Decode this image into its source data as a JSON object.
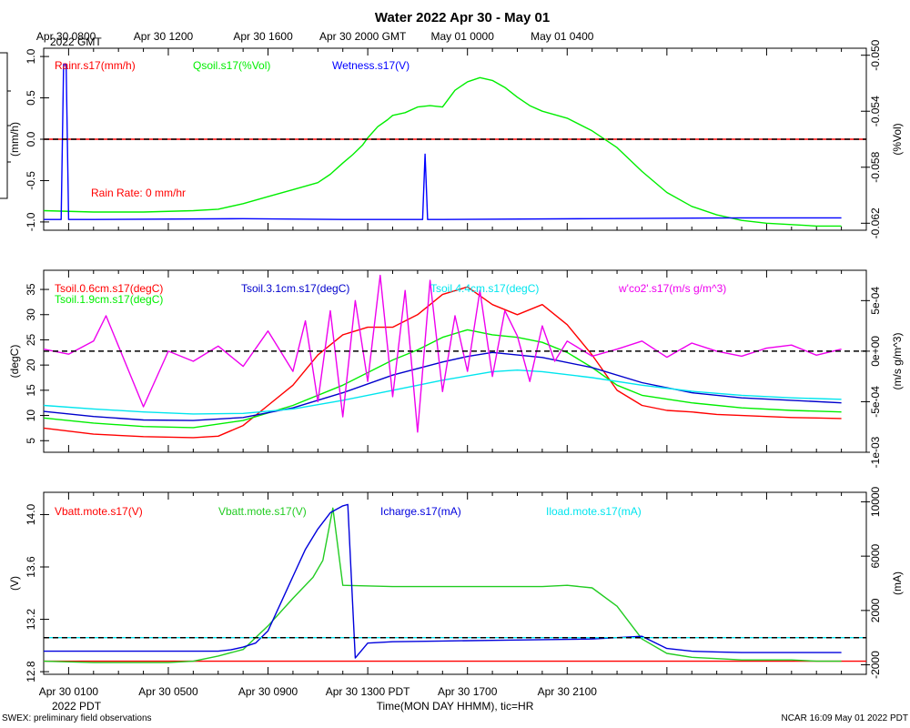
{
  "page": {
    "title": "Water 2022 Apr 30 - May 01",
    "footer_left": "SWEX: preliminary field observations",
    "footer_right": "NCAR 16:09 May 01 2022 PDT",
    "x_title": "Time(MON DAY HHMM), tic=HR",
    "top_year_label": "2022 GMT",
    "bottom_year_label": "2022 PDT",
    "side_box_ticks": [
      "1",
      "0",
      "-1"
    ]
  },
  "chart_data": [
    {
      "id": "top-axis",
      "type": "line",
      "axis": "time",
      "xlim_hours": [
        0,
        33
      ],
      "top_ticks": [
        {
          "h": 0.8,
          "label": "Apr 30 0800"
        },
        {
          "h": 4.8,
          "label": "Apr 30 1200"
        },
        {
          "h": 8.8,
          "label": "Apr 30 1600"
        },
        {
          "h": 12.8,
          "label": "Apr 30 2000 GMT"
        },
        {
          "h": 16.8,
          "label": "May 01 0000"
        },
        {
          "h": 20.8,
          "label": "May 01 0400"
        }
      ],
      "bottom_ticks": [
        {
          "h": 1,
          "label": "Apr 30 0100"
        },
        {
          "h": 5,
          "label": "Apr 30 0500"
        },
        {
          "h": 9,
          "label": "Apr 30 0900"
        },
        {
          "h": 13,
          "label": "Apr 30 1300 PDT"
        },
        {
          "h": 17,
          "label": "Apr 30 1700"
        },
        {
          "h": 21,
          "label": "Apr 30 2100"
        }
      ]
    },
    {
      "id": "panel-water",
      "type": "line",
      "ylabel": "(mm/h)",
      "ylabel2": "(%Vol)",
      "ylim": [
        -1.1,
        1.1
      ],
      "yticks": [
        1.0,
        0.5,
        0.0,
        -0.5,
        -1.0
      ],
      "ytick_labels": [
        "1.0",
        "0.5",
        "0.0",
        "-0.5",
        "-1.0"
      ],
      "y2lim": [
        -0.0625,
        -0.0495
      ],
      "y2ticks": [
        -0.05,
        -0.054,
        -0.058,
        -0.062
      ],
      "y2tick_labels": [
        "-0.050",
        "-0.054",
        "-0.058",
        "-0.062"
      ],
      "annotation": "Rain Rate: 0 mm/hr",
      "series": [
        {
          "name": "Rainr.s17(mm/h)",
          "color": "#ff0000",
          "axis": "left",
          "x": [
            0,
            33
          ],
          "y": [
            0,
            0
          ]
        },
        {
          "name": "Qsoil.s17(%Vol)",
          "color": "#00ee00",
          "axis": "right",
          "x": [
            0,
            2,
            4,
            6,
            7,
            8,
            9,
            10,
            11,
            11.5,
            12,
            12.4,
            12.8,
            13,
            13.4,
            13.8,
            14,
            14.5,
            15,
            15.5,
            16,
            16.5,
            17,
            17.5,
            18,
            18.5,
            19,
            19.5,
            20,
            21,
            22,
            23,
            24,
            25,
            26,
            27,
            28,
            29,
            30,
            31,
            32
          ],
          "y": [
            -0.0611,
            -0.0612,
            -0.0612,
            -0.0611,
            -0.061,
            -0.0606,
            -0.0601,
            -0.0596,
            -0.0591,
            -0.0585,
            -0.0577,
            -0.0571,
            -0.0564,
            -0.0559,
            -0.0551,
            -0.0546,
            -0.0543,
            -0.0541,
            -0.0537,
            -0.0536,
            -0.0537,
            -0.0525,
            -0.0519,
            -0.0516,
            -0.0518,
            -0.0523,
            -0.053,
            -0.0536,
            -0.054,
            -0.0545,
            -0.0554,
            -0.0566,
            -0.0583,
            -0.0598,
            -0.0608,
            -0.0614,
            -0.0618,
            -0.062,
            -0.0621,
            -0.0622,
            -0.0622
          ]
        },
        {
          "name": "Wetness.s17(V)",
          "color": "#0000ff",
          "axis": "left",
          "x": [
            0,
            0.7,
            0.8,
            0.9,
            1.0,
            2,
            8,
            12,
            15,
            15.2,
            15.3,
            15.4,
            15.5,
            16,
            22,
            28,
            32
          ],
          "y": [
            -0.97,
            -0.97,
            0.91,
            0.9,
            -0.97,
            -0.97,
            -0.96,
            -0.97,
            -0.97,
            -0.97,
            -0.18,
            -0.97,
            -0.97,
            -0.97,
            -0.96,
            -0.95,
            -0.95
          ]
        }
      ]
    },
    {
      "id": "panel-temperature",
      "type": "line",
      "ylabel": "(degC)",
      "ylabel2": "(m/s g/m^3)",
      "ylim": [
        2.7,
        38.8
      ],
      "yticks": [
        5,
        10,
        15,
        20,
        25,
        30,
        35
      ],
      "ytick_labels": [
        "5",
        "10",
        "15",
        "20",
        "25",
        "30",
        "35"
      ],
      "y2lim": [
        -0.001,
        0.0008
      ],
      "y2ticks": [
        0.0005,
        0,
        -0.0005,
        -0.001
      ],
      "y2tick_labels": [
        "5e-04",
        "0e+00",
        "-5e-04",
        "-1e-03"
      ],
      "series": [
        {
          "name": "Tsoil.0.6cm.s17(degC)",
          "color": "#ff0000",
          "axis": "left",
          "x": [
            0,
            2,
            4,
            6,
            7,
            8,
            9,
            10,
            11,
            12,
            13,
            14,
            15,
            16,
            17,
            18,
            19,
            20,
            21,
            22,
            23,
            24,
            25,
            26,
            27,
            28,
            29,
            30,
            31,
            32
          ],
          "y": [
            7.5,
            6.3,
            5.8,
            5.6,
            5.9,
            8,
            12,
            16,
            22,
            26,
            27.5,
            27.5,
            30,
            34,
            35.5,
            32,
            30,
            32,
            28,
            22,
            15,
            12,
            11,
            10.7,
            10.2,
            10,
            9.8,
            9.6,
            9.5,
            9.4
          ]
        },
        {
          "name": "Tsoil.1.9cm.s17(degC)",
          "color": "#00ee00",
          "axis": "left",
          "x": [
            0,
            2,
            4,
            6,
            8,
            10,
            12,
            14,
            15,
            16,
            17,
            18,
            19,
            20,
            21,
            22,
            23,
            24,
            26,
            28,
            30,
            32
          ],
          "y": [
            9.5,
            8.5,
            7.8,
            7.6,
            9,
            12,
            16,
            21,
            23,
            25.5,
            27,
            26,
            25.5,
            24.5,
            22.5,
            19.5,
            16,
            14,
            12.5,
            11.5,
            11,
            10.7
          ]
        },
        {
          "name": "Tsoil.3.1cm.s17(degC)",
          "color": "#0000cc",
          "axis": "left",
          "x": [
            0,
            2,
            4,
            6,
            8,
            10,
            12,
            14,
            16,
            17,
            18,
            19,
            20,
            22,
            24,
            26,
            28,
            30,
            32
          ],
          "y": [
            10.8,
            9.8,
            9.1,
            9,
            9.6,
            11.5,
            14.5,
            18,
            20.6,
            21.7,
            22.5,
            22,
            21.5,
            19.5,
            16.5,
            14.5,
            13.5,
            13,
            12.5
          ]
        },
        {
          "name": "Tsoil.4.4cm.s17(degC)",
          "color": "#00e5ee",
          "axis": "left",
          "x": [
            0,
            2,
            4,
            6,
            8,
            10,
            12,
            14,
            16,
            18,
            19,
            20,
            22,
            24,
            26,
            28,
            30,
            32
          ],
          "y": [
            12,
            11.3,
            10.7,
            10.3,
            10.4,
            11.3,
            13,
            15,
            17,
            18.7,
            19,
            18.7,
            17.5,
            16,
            14.8,
            14,
            13.5,
            13.2
          ]
        },
        {
          "name": "w'co2'.s17(m/s g/m^3)",
          "color": "#ee00ee",
          "axis": "right",
          "x": [
            0,
            1,
            2,
            2.5,
            3,
            4,
            5,
            6,
            7,
            8,
            9,
            10,
            10.5,
            11,
            11.5,
            12,
            12.5,
            13,
            13.5,
            14,
            14.5,
            15,
            15.5,
            16,
            16.5,
            17,
            17.5,
            18,
            18.5,
            19,
            19.5,
            20,
            20.5,
            21,
            22,
            23,
            24,
            25,
            26,
            27,
            28,
            29,
            30,
            31,
            32
          ],
          "y": [
            2e-05,
            -3e-05,
            0.0001,
            0.00035,
            5e-05,
            -0.00055,
            0,
            -0.0001,
            5e-05,
            -0.00015,
            0.0002,
            -0.0002,
            0.0003,
            -0.0005,
            0.0004,
            -0.00065,
            0.0005,
            -0.0003,
            0.00075,
            -0.00045,
            0.0006,
            -0.0008,
            0.0007,
            -0.0004,
            0.00035,
            -0.0002,
            0.0006,
            -0.00025,
            0.0004,
            0.00015,
            -0.0003,
            0.00025,
            -0.0001,
            0.0001,
            -5e-05,
            2e-05,
            0.0001,
            -6e-05,
            8e-05,
            0,
            -5e-05,
            3e-05,
            6e-05,
            -4e-05,
            2e-05
          ]
        }
      ]
    },
    {
      "id": "panel-power",
      "type": "line",
      "ylabel": "(V)",
      "ylabel2": "(mA)",
      "ylim": [
        12.78,
        14.17
      ],
      "yticks": [
        12.8,
        13.2,
        13.6,
        14.0
      ],
      "ytick_labels": [
        "12.8",
        "13.2",
        "13.6",
        "14.0"
      ],
      "y2lim": [
        -2700,
        10700
      ],
      "y2ticks": [
        10000,
        6000,
        2000,
        -2000
      ],
      "y2tick_labels": [
        "10000",
        "6000",
        "2000",
        "-2000"
      ],
      "series": [
        {
          "name": "Vbatt.mote.s17(V)",
          "color": "#ff0000",
          "axis": "left",
          "x": [
            0,
            33
          ],
          "y": [
            12.88,
            12.88
          ]
        },
        {
          "name": "Vbatt.mote.s17(V)",
          "color": "#22cc22",
          "axis": "left",
          "x": [
            0,
            2,
            4,
            5,
            6,
            7,
            8,
            9,
            10,
            10.8,
            11.2,
            11.6,
            12,
            14,
            16,
            18,
            20,
            21,
            22,
            23,
            24,
            25,
            26,
            27,
            28,
            29,
            30,
            31,
            32
          ],
          "y": [
            12.88,
            12.87,
            12.87,
            12.87,
            12.88,
            12.92,
            12.97,
            13.15,
            13.36,
            13.52,
            13.65,
            14.05,
            13.46,
            13.45,
            13.45,
            13.45,
            13.45,
            13.46,
            13.44,
            13.3,
            13.05,
            12.94,
            12.91,
            12.9,
            12.89,
            12.89,
            12.89,
            12.88,
            12.88
          ]
        },
        {
          "name": "Icharge.s17(mA)",
          "color": "#0000dd",
          "axis": "right",
          "x": [
            0,
            2,
            4,
            6,
            7,
            7.5,
            8,
            8.5,
            9,
            9.5,
            10,
            10.5,
            11,
            11.5,
            12,
            12.2,
            12.5,
            13,
            14,
            16,
            18,
            20,
            22,
            23,
            24,
            25,
            26,
            27,
            28,
            30,
            32
          ],
          "y": [
            -1000,
            -1000,
            -1000,
            -1000,
            -1000,
            -900,
            -700,
            -400,
            500,
            2500,
            4500,
            6500,
            8000,
            9200,
            9700,
            9800,
            -1500,
            -400,
            -300,
            -250,
            -200,
            -150,
            -100,
            0,
            100,
            -800,
            -1000,
            -1050,
            -1100,
            -1100,
            -1100
          ]
        },
        {
          "name": "Iload.mote.s17(mA)",
          "color": "#00e5ee",
          "axis": "right",
          "x": [
            0,
            33
          ],
          "y": [
            0,
            0
          ]
        }
      ]
    }
  ]
}
